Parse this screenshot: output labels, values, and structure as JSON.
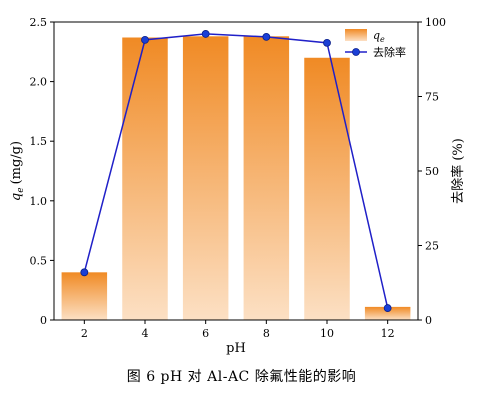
{
  "chart_data": {
    "type": "bar",
    "categories": [
      "2",
      "4",
      "6",
      "8",
      "10",
      "12"
    ],
    "series": [
      {
        "name": "q_e",
        "type": "bar",
        "axis": "left",
        "values": [
          0.4,
          2.37,
          2.38,
          2.38,
          2.2,
          0.11
        ],
        "color": "#f08a24"
      },
      {
        "name": "去除率",
        "type": "line",
        "axis": "right",
        "values": [
          16,
          94,
          96,
          95,
          93,
          4
        ],
        "color": "#2020c8",
        "marker_color": "#1a3fd6"
      }
    ],
    "xlabel": "pH",
    "ylabel_left": "qe (mg/g)",
    "ylabel_left_main": "q",
    "ylabel_left_sub": "e",
    "ylabel_left_unit": "(mg/g)",
    "ylabel_right": "去除率 (%)",
    "ylim_left": [
      0,
      2.5
    ],
    "ylim_right": [
      0,
      100
    ],
    "yticks_left": [
      "0",
      "0.5",
      "1.0",
      "1.5",
      "2.0",
      "2.5"
    ],
    "yticks_right": [
      "0",
      "25",
      "50",
      "75",
      "100"
    ],
    "legend": [
      {
        "label_main": "q",
        "label_sub": "e"
      },
      {
        "label_main": "去除率"
      }
    ],
    "legend_position": "top-right",
    "grid": false
  },
  "caption": "图 6  pH 对 Al-AC 除氟性能的影响"
}
